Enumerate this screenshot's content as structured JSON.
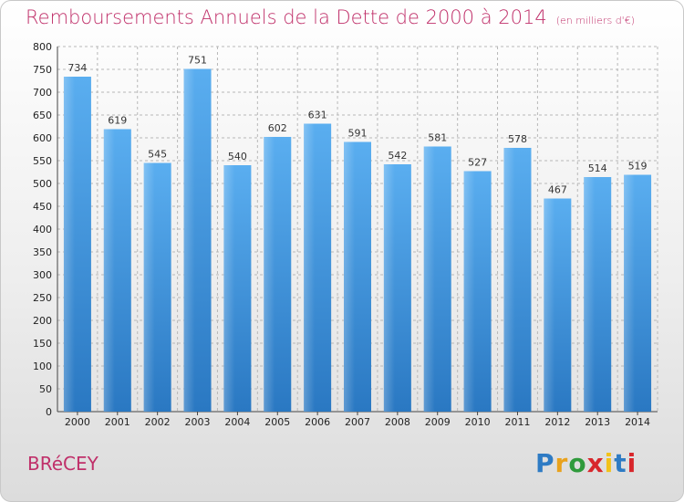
{
  "chart_data": {
    "type": "bar",
    "title": "Remboursements Annuels de la Dette de 2000 à 2014",
    "unit_label": "(en milliers d'€)",
    "categories": [
      "2000",
      "2001",
      "2002",
      "2003",
      "2004",
      "2005",
      "2006",
      "2007",
      "2008",
      "2009",
      "2010",
      "2011",
      "2012",
      "2013",
      "2014"
    ],
    "values": [
      734,
      619,
      545,
      751,
      540,
      602,
      631,
      591,
      542,
      581,
      527,
      578,
      467,
      514,
      519
    ],
    "ylim": [
      0,
      800
    ],
    "yticks": [
      0,
      50,
      100,
      150,
      200,
      250,
      300,
      350,
      400,
      450,
      500,
      550,
      600,
      650,
      700,
      750,
      800
    ],
    "grid": true,
    "bar_color": "#3d8fd6",
    "xlabel": "",
    "ylabel": ""
  },
  "footer": {
    "commune": "BRéCEY",
    "logo": {
      "p": "P",
      "r": "r",
      "o": "o",
      "x": "x",
      "i1": "i",
      "t": "t",
      "i2": "i"
    }
  },
  "colors": {
    "title": "#c0306a",
    "grid": "#b8b8b8"
  }
}
